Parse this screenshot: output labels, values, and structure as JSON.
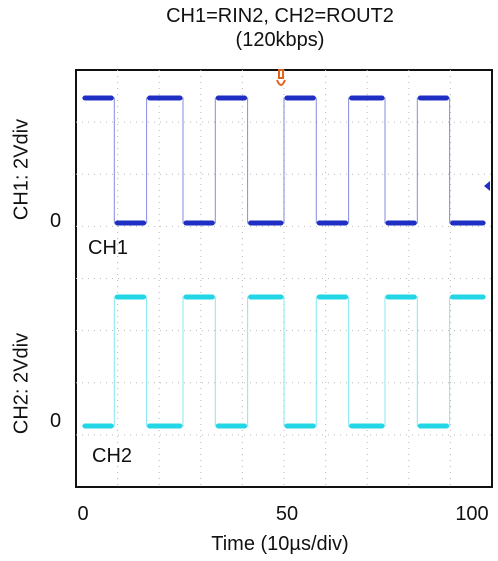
{
  "chart_data": {
    "type": "line",
    "title": "CH1=RIN2, CH2=ROUT2",
    "subtitle": "(120kbps)",
    "xlabel": "Time (10µs/div)",
    "x_ticks": [
      "0",
      "50",
      "100"
    ],
    "xlim": [
      0,
      100
    ],
    "channel_labels": [
      "CH1",
      "CH2"
    ],
    "channel_ylabels": [
      "CH1: 2Vdiv",
      "CH2: 2Vdiv"
    ],
    "zero_label": "0",
    "grid": true,
    "series": [
      {
        "name": "CH1",
        "color": "#1f2fc4",
        "x": [
          0,
          8,
          8,
          16,
          16,
          25,
          25,
          33,
          33,
          41,
          41,
          50,
          50,
          58,
          58,
          66,
          66,
          75,
          75,
          83,
          83,
          91,
          91,
          100
        ],
        "y": [
          1,
          1,
          0,
          0,
          1,
          1,
          0,
          0,
          1,
          1,
          0,
          0,
          1,
          1,
          0,
          0,
          1,
          1,
          0,
          0,
          1,
          1,
          0,
          0
        ]
      },
      {
        "name": "CH2",
        "color": "#22d6e6",
        "x": [
          0,
          8,
          8,
          16,
          16,
          25,
          25,
          33,
          33,
          41,
          41,
          50,
          50,
          58,
          58,
          66,
          66,
          75,
          75,
          83,
          83,
          91,
          91,
          100
        ],
        "y": [
          0,
          0,
          1,
          1,
          0,
          0,
          1,
          1,
          0,
          0,
          1,
          1,
          0,
          0,
          1,
          1,
          0,
          0,
          1,
          1,
          0,
          0,
          1,
          1
        ]
      }
    ]
  }
}
